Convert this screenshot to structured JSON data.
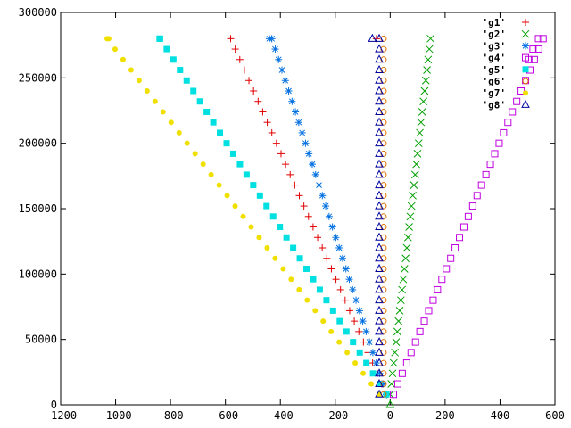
{
  "chart_data": {
    "type": "scatter",
    "xlim": [
      -1200,
      600
    ],
    "ylim": [
      0,
      300000
    ],
    "x_ticks": [
      -1200,
      -1000,
      -800,
      -600,
      -400,
      -200,
      0,
      200,
      400,
      600
    ],
    "y_ticks": [
      0,
      50000,
      100000,
      150000,
      200000,
      250000,
      300000
    ],
    "grid": false,
    "legend_position": "top-right",
    "y_values": [
      8000,
      16000,
      24000,
      32000,
      40000,
      48000,
      56000,
      64000,
      72000,
      80000,
      88000,
      96000,
      104000,
      112000,
      120000,
      128000,
      136000,
      144000,
      152000,
      160000,
      168000,
      176000,
      184000,
      192000,
      200000,
      208000,
      216000,
      224000,
      232000,
      240000,
      248000,
      256000,
      264000,
      272000,
      280000
    ],
    "series": [
      {
        "name": "'g1'",
        "color": "#e00000",
        "marker": "plus",
        "x0": -14,
        "x_end": -581
      },
      {
        "name": "'g2'",
        "color": "#00a000",
        "marker": "cross",
        "x0": 0,
        "x_end": 147
      },
      {
        "name": "'g3'",
        "color": "#0070e0",
        "marker": "asterisk",
        "x0": -14,
        "x_end": -431
      },
      {
        "name": "'g4'",
        "color": "#c000e0",
        "marker": "square-open",
        "x0": 12,
        "x_end": 557
      },
      {
        "name": "'g5'",
        "color": "#00e0e0",
        "marker": "square-filled",
        "x0": -14,
        "x_end": -838
      },
      {
        "name": "'g6'",
        "color": "#e07000",
        "marker": "circle-open",
        "x0": -24,
        "x_end": -24
      },
      {
        "name": "'g7'",
        "color": "#f0e000",
        "marker": "circle-filled",
        "x0": -40,
        "x_end": -1031
      },
      {
        "name": "'g8'",
        "color": "#0000a0",
        "marker": "triangle-open",
        "x0": -40,
        "x_end": -40
      }
    ],
    "series_extras": {
      "'g1'": [
        [
          -50,
          280000
        ]
      ],
      "'g3'": [
        [
          -440,
          280000
        ]
      ],
      "'g4'": [
        [
          540,
          280000
        ],
        [
          520,
          272000
        ],
        [
          505,
          264000
        ]
      ],
      "'g5'": [
        [
          -840,
          280000
        ]
      ],
      "'g7'": [
        [
          -1025,
          280000
        ]
      ],
      "'g8'": [
        [
          -65,
          280000
        ]
      ]
    }
  }
}
